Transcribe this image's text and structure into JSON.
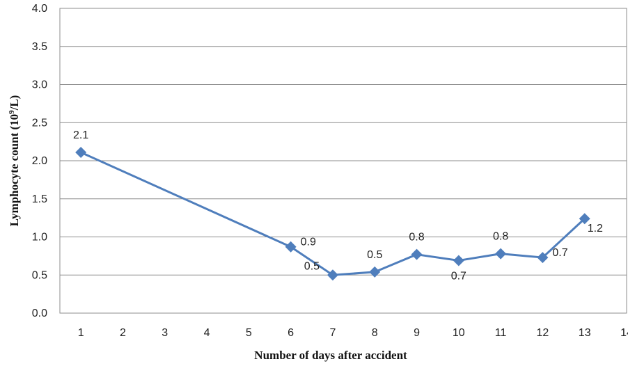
{
  "chart_data": {
    "type": "line",
    "xlabel": "Number of days after accident",
    "ylabel": "Lymphocyte count (10",
    "ylabel_sup": "9",
    "ylabel_suffix": "/L)",
    "ylim": [
      0,
      4
    ],
    "y_ticks": [
      "0.0",
      "0.5",
      "1.0",
      "1.5",
      "2.0",
      "2.5",
      "3.0",
      "3.5",
      "4.0"
    ],
    "x_ticks": [
      "1",
      "2",
      "3",
      "4",
      "5",
      "6",
      "7",
      "8",
      "9",
      "10",
      "11",
      "12",
      "13",
      "14"
    ],
    "grid": true,
    "legend": "none",
    "series": [
      {
        "color": "#4f7ebc",
        "marker": "diamond",
        "points": [
          {
            "x": 1,
            "y": 2.11,
            "label": "2.1",
            "pos": "above"
          },
          {
            "x": 6,
            "y": 0.87,
            "label": "0.9",
            "pos": "right"
          },
          {
            "x": 7,
            "y": 0.5,
            "label": "0.5",
            "pos": "upper-left"
          },
          {
            "x": 8,
            "y": 0.54,
            "label": "0.5",
            "pos": "above"
          },
          {
            "x": 9,
            "y": 0.77,
            "label": "0.8",
            "pos": "above"
          },
          {
            "x": 10,
            "y": 0.69,
            "label": "0.7",
            "pos": "below"
          },
          {
            "x": 11,
            "y": 0.78,
            "label": "0.8",
            "pos": "above"
          },
          {
            "x": 12,
            "y": 0.73,
            "label": "0.7",
            "pos": "right"
          },
          {
            "x": 13,
            "y": 1.24,
            "label": "1.2",
            "pos": "lower-right"
          }
        ]
      }
    ]
  }
}
